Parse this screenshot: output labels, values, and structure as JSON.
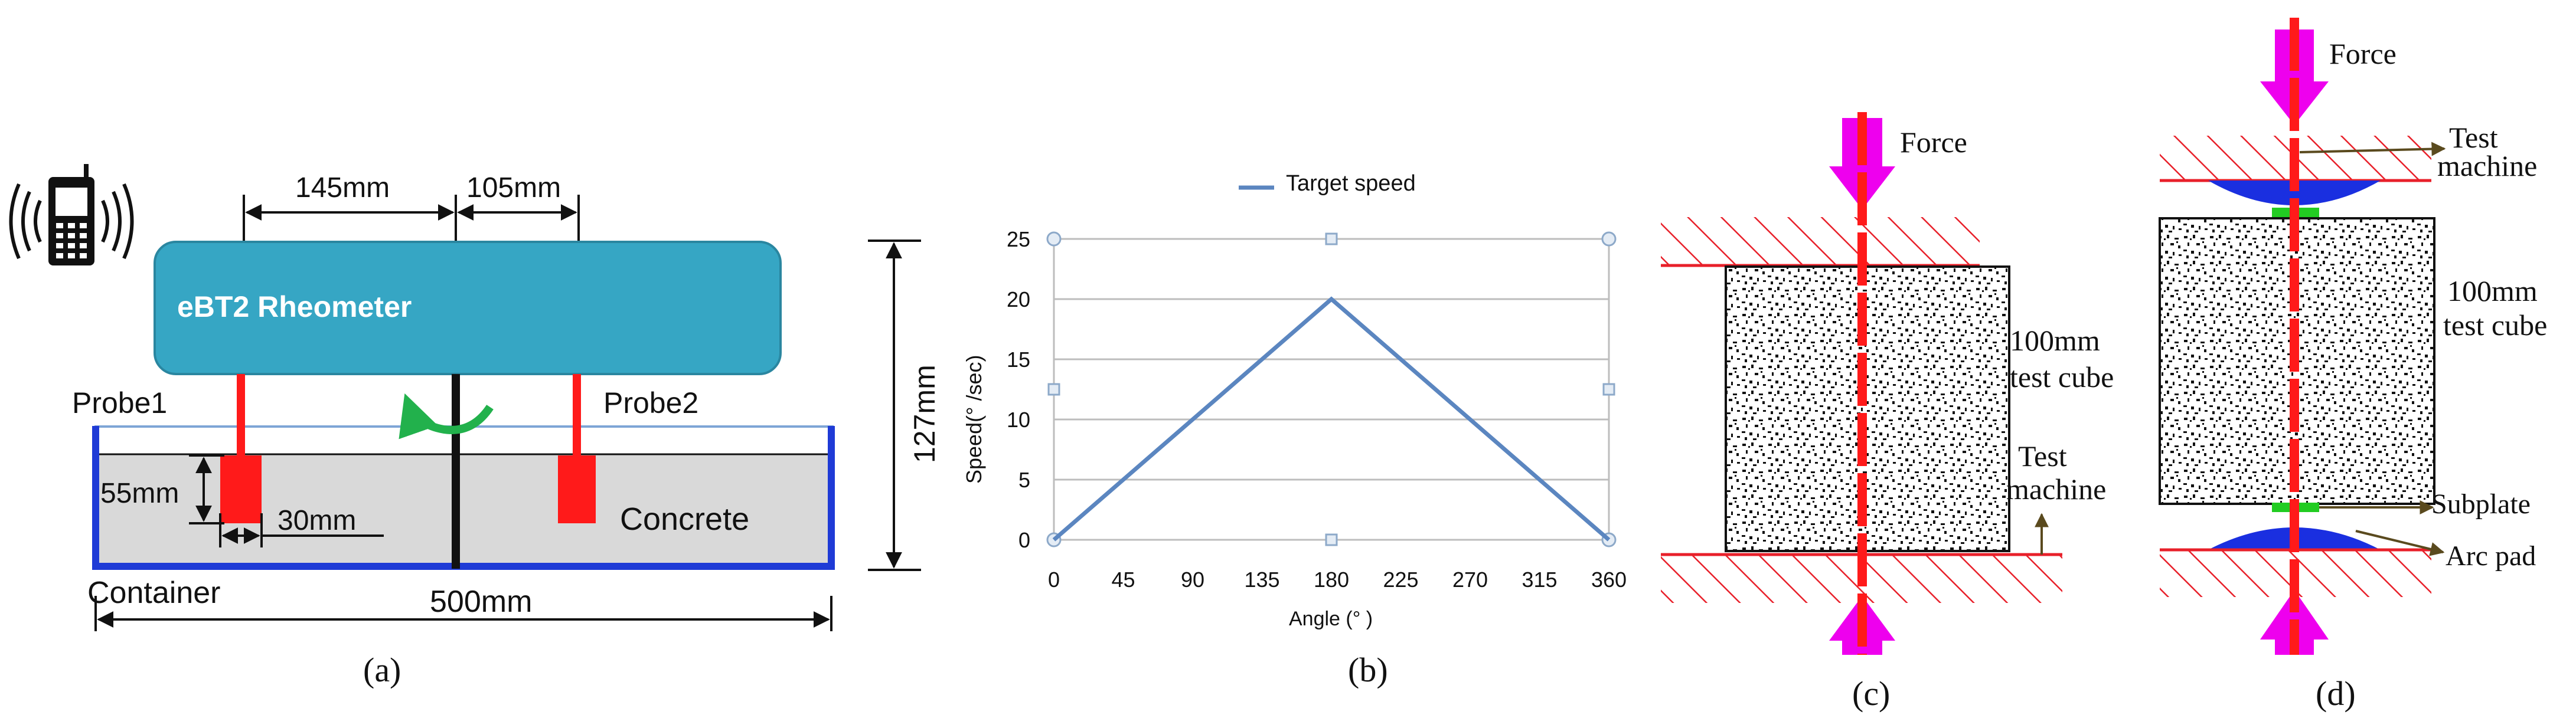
{
  "panel_a": {
    "caption": "(a)",
    "rheometer_label": "eBT2 Rheometer",
    "probe1_label": "Probe1",
    "probe2_label": "Probe2",
    "concrete_label": "Concrete",
    "container_label": "Container",
    "dim_145": "145mm",
    "dim_105": "105mm",
    "dim_127": "127mm",
    "dim_55": "55mm",
    "dim_30": "30mm",
    "dim_500": "500mm",
    "colors": {
      "rheometer": "#36a6c4",
      "probe": "#ff1a1a",
      "container": "#1f3bd6",
      "concrete": "#d9d9d9",
      "rotation_arrow": "#22b14c"
    }
  },
  "panel_b": {
    "caption": "(b)",
    "chart_data": {
      "type": "line",
      "title": "",
      "xlabel": "Angle (°  )",
      "ylabel": "Speed(°  /sec)",
      "legend": {
        "position": "top",
        "entries": [
          "Target speed"
        ]
      },
      "xlim": [
        0,
        360
      ],
      "ylim": [
        0,
        25
      ],
      "x_ticks": [
        0,
        45,
        90,
        135,
        180,
        225,
        270,
        315,
        360
      ],
      "y_ticks": [
        0,
        5,
        10,
        15,
        20,
        25
      ],
      "grid": true,
      "series": [
        {
          "name": "Target speed",
          "color": "#5b86c0",
          "x": [
            0,
            180,
            360
          ],
          "y": [
            0,
            20,
            0
          ]
        }
      ]
    }
  },
  "panel_c": {
    "caption": "(c)",
    "force_label": "Force",
    "cube_label_1": "100mm",
    "cube_label_2": "test cube",
    "machine_label_1": "Test",
    "machine_label_2": "machine",
    "colors": {
      "force_arrow": "#ee00ee",
      "axis_line": "#ff1a1a",
      "hatch": "#e8202a"
    }
  },
  "panel_d": {
    "caption": "(d)",
    "force_label": "Force",
    "machine_label_1": "Test",
    "machine_label_2": "machine",
    "cube_label_1": "100mm",
    "cube_label_2": "test cube",
    "subplate_label": "Subplate",
    "arc_pad_label": "Arc pad",
    "colors": {
      "arc_pad": "#1a2fe0",
      "subplate": "#22cc22"
    }
  }
}
